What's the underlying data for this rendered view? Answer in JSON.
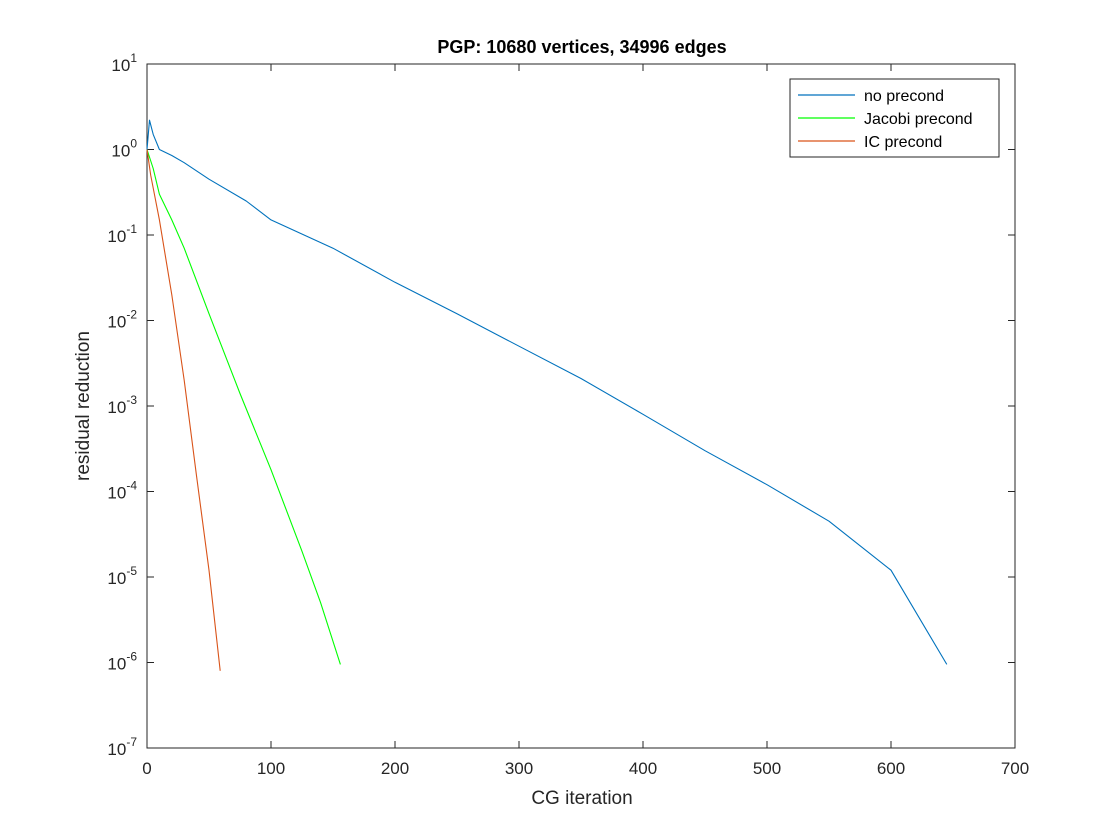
{
  "chart_data": {
    "type": "line",
    "title": "PGP: 10680 vertices, 34996 edges",
    "xlabel": "CG iteration",
    "ylabel": "residual reduction",
    "xlim": [
      0,
      700
    ],
    "ylim": [
      1e-07,
      10
    ],
    "yscale": "log",
    "x_ticks": [
      0,
      100,
      200,
      300,
      400,
      500,
      600,
      700
    ],
    "y_tick_exponents": [
      1,
      0,
      -1,
      -2,
      -3,
      -4,
      -5,
      -6,
      -7
    ],
    "y_tick_base": "10",
    "grid": false,
    "legend_position": "top-right",
    "series": [
      {
        "name": "no precond",
        "color": "#0072BD",
        "x": [
          0,
          2,
          5,
          10,
          20,
          30,
          50,
          80,
          100,
          150,
          200,
          250,
          300,
          350,
          400,
          450,
          500,
          550,
          600,
          645
        ],
        "y": [
          1.0,
          2.2,
          1.5,
          1.0,
          0.85,
          0.7,
          0.45,
          0.25,
          0.15,
          0.07,
          0.028,
          0.012,
          0.005,
          0.0021,
          0.0008,
          0.0003,
          0.00012,
          4.5e-05,
          1.2e-05,
          9.5e-07
        ]
      },
      {
        "name": "Jacobi precond",
        "color": "#00FF00",
        "x": [
          0,
          5,
          10,
          20,
          30,
          50,
          75,
          100,
          125,
          140,
          156
        ],
        "y": [
          1.0,
          0.6,
          0.3,
          0.15,
          0.07,
          0.012,
          0.0014,
          0.00018,
          2e-05,
          5e-06,
          9.5e-07
        ]
      },
      {
        "name": "IC precond",
        "color": "#D95319",
        "x": [
          0,
          3,
          6,
          10,
          20,
          30,
          40,
          50,
          59
        ],
        "y": [
          1.0,
          0.5,
          0.3,
          0.15,
          0.02,
          0.002,
          0.00015,
          1.2e-05,
          8e-07
        ]
      }
    ]
  }
}
